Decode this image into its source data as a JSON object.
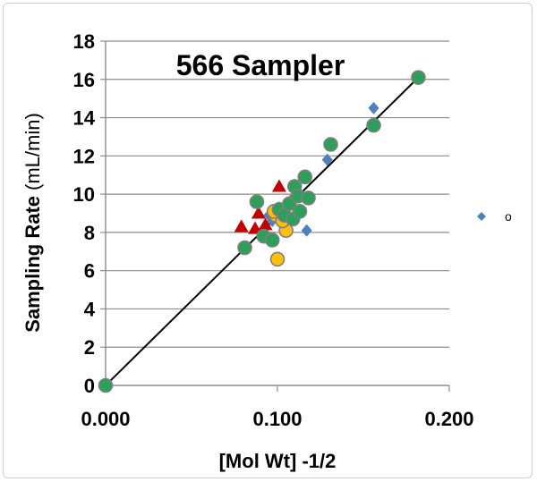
{
  "chart_data": {
    "type": "scatter",
    "title": "566 Sampler",
    "xlabel": "[Mol Wt] -1/2",
    "ylabel": "Sampling Rate",
    "ylabel_unit": "(mL/min)",
    "xlim": [
      0.0,
      0.2
    ],
    "ylim": [
      0,
      18
    ],
    "x_ticks": [
      "0.000",
      "0.100",
      "0.200"
    ],
    "x_tick_values": [
      0.0,
      0.1,
      0.2
    ],
    "y_ticks": [
      "0",
      "2",
      "4",
      "6",
      "8",
      "10",
      "12",
      "14",
      "16",
      "18"
    ],
    "y_tick_values": [
      0,
      2,
      4,
      6,
      8,
      10,
      12,
      14,
      16,
      18
    ],
    "grid": "horizontal",
    "legend": {
      "placement": "right",
      "entries": [
        {
          "label": "o",
          "marker": "diamond",
          "color": "#4f81bd"
        }
      ]
    },
    "series": [
      {
        "marker": "diamond",
        "color": "#4f81bd",
        "points": [
          [
            0.156,
            14.5
          ],
          [
            0.129,
            11.8
          ],
          [
            0.117,
            8.1
          ],
          [
            0.108,
            9.7
          ],
          [
            0.101,
            9.3
          ],
          [
            0.097,
            8.6
          ],
          [
            0.095,
            8.9
          ]
        ]
      },
      {
        "marker": "triangle",
        "color": "#c00000",
        "points": [
          [
            0.079,
            8.3
          ],
          [
            0.087,
            8.2
          ],
          [
            0.089,
            9.0
          ],
          [
            0.101,
            10.4
          ],
          [
            0.093,
            8.4
          ]
        ]
      },
      {
        "marker": "circle",
        "color": "#ffc000",
        "points": [
          [
            0.1,
            6.6
          ],
          [
            0.105,
            8.1
          ],
          [
            0.099,
            8.9
          ],
          [
            0.098,
            9.1
          ],
          [
            0.103,
            8.6
          ]
        ]
      },
      {
        "marker": "circle",
        "color": "#2ca05a",
        "points": [
          [
            0.0,
            0.0
          ],
          [
            0.081,
            7.2
          ],
          [
            0.088,
            9.6
          ],
          [
            0.092,
            7.8
          ],
          [
            0.097,
            7.6
          ],
          [
            0.101,
            9.2
          ],
          [
            0.104,
            8.9
          ],
          [
            0.107,
            9.5
          ],
          [
            0.109,
            8.7
          ],
          [
            0.11,
            10.4
          ],
          [
            0.112,
            9.9
          ],
          [
            0.113,
            9.1
          ],
          [
            0.116,
            10.9
          ],
          [
            0.118,
            9.8
          ],
          [
            0.131,
            12.6
          ],
          [
            0.156,
            13.6
          ],
          [
            0.182,
            16.1
          ]
        ]
      }
    ],
    "trendline": {
      "from": [
        0.0,
        0.0
      ],
      "to": [
        0.182,
        16.1
      ],
      "color": "#000000"
    }
  }
}
